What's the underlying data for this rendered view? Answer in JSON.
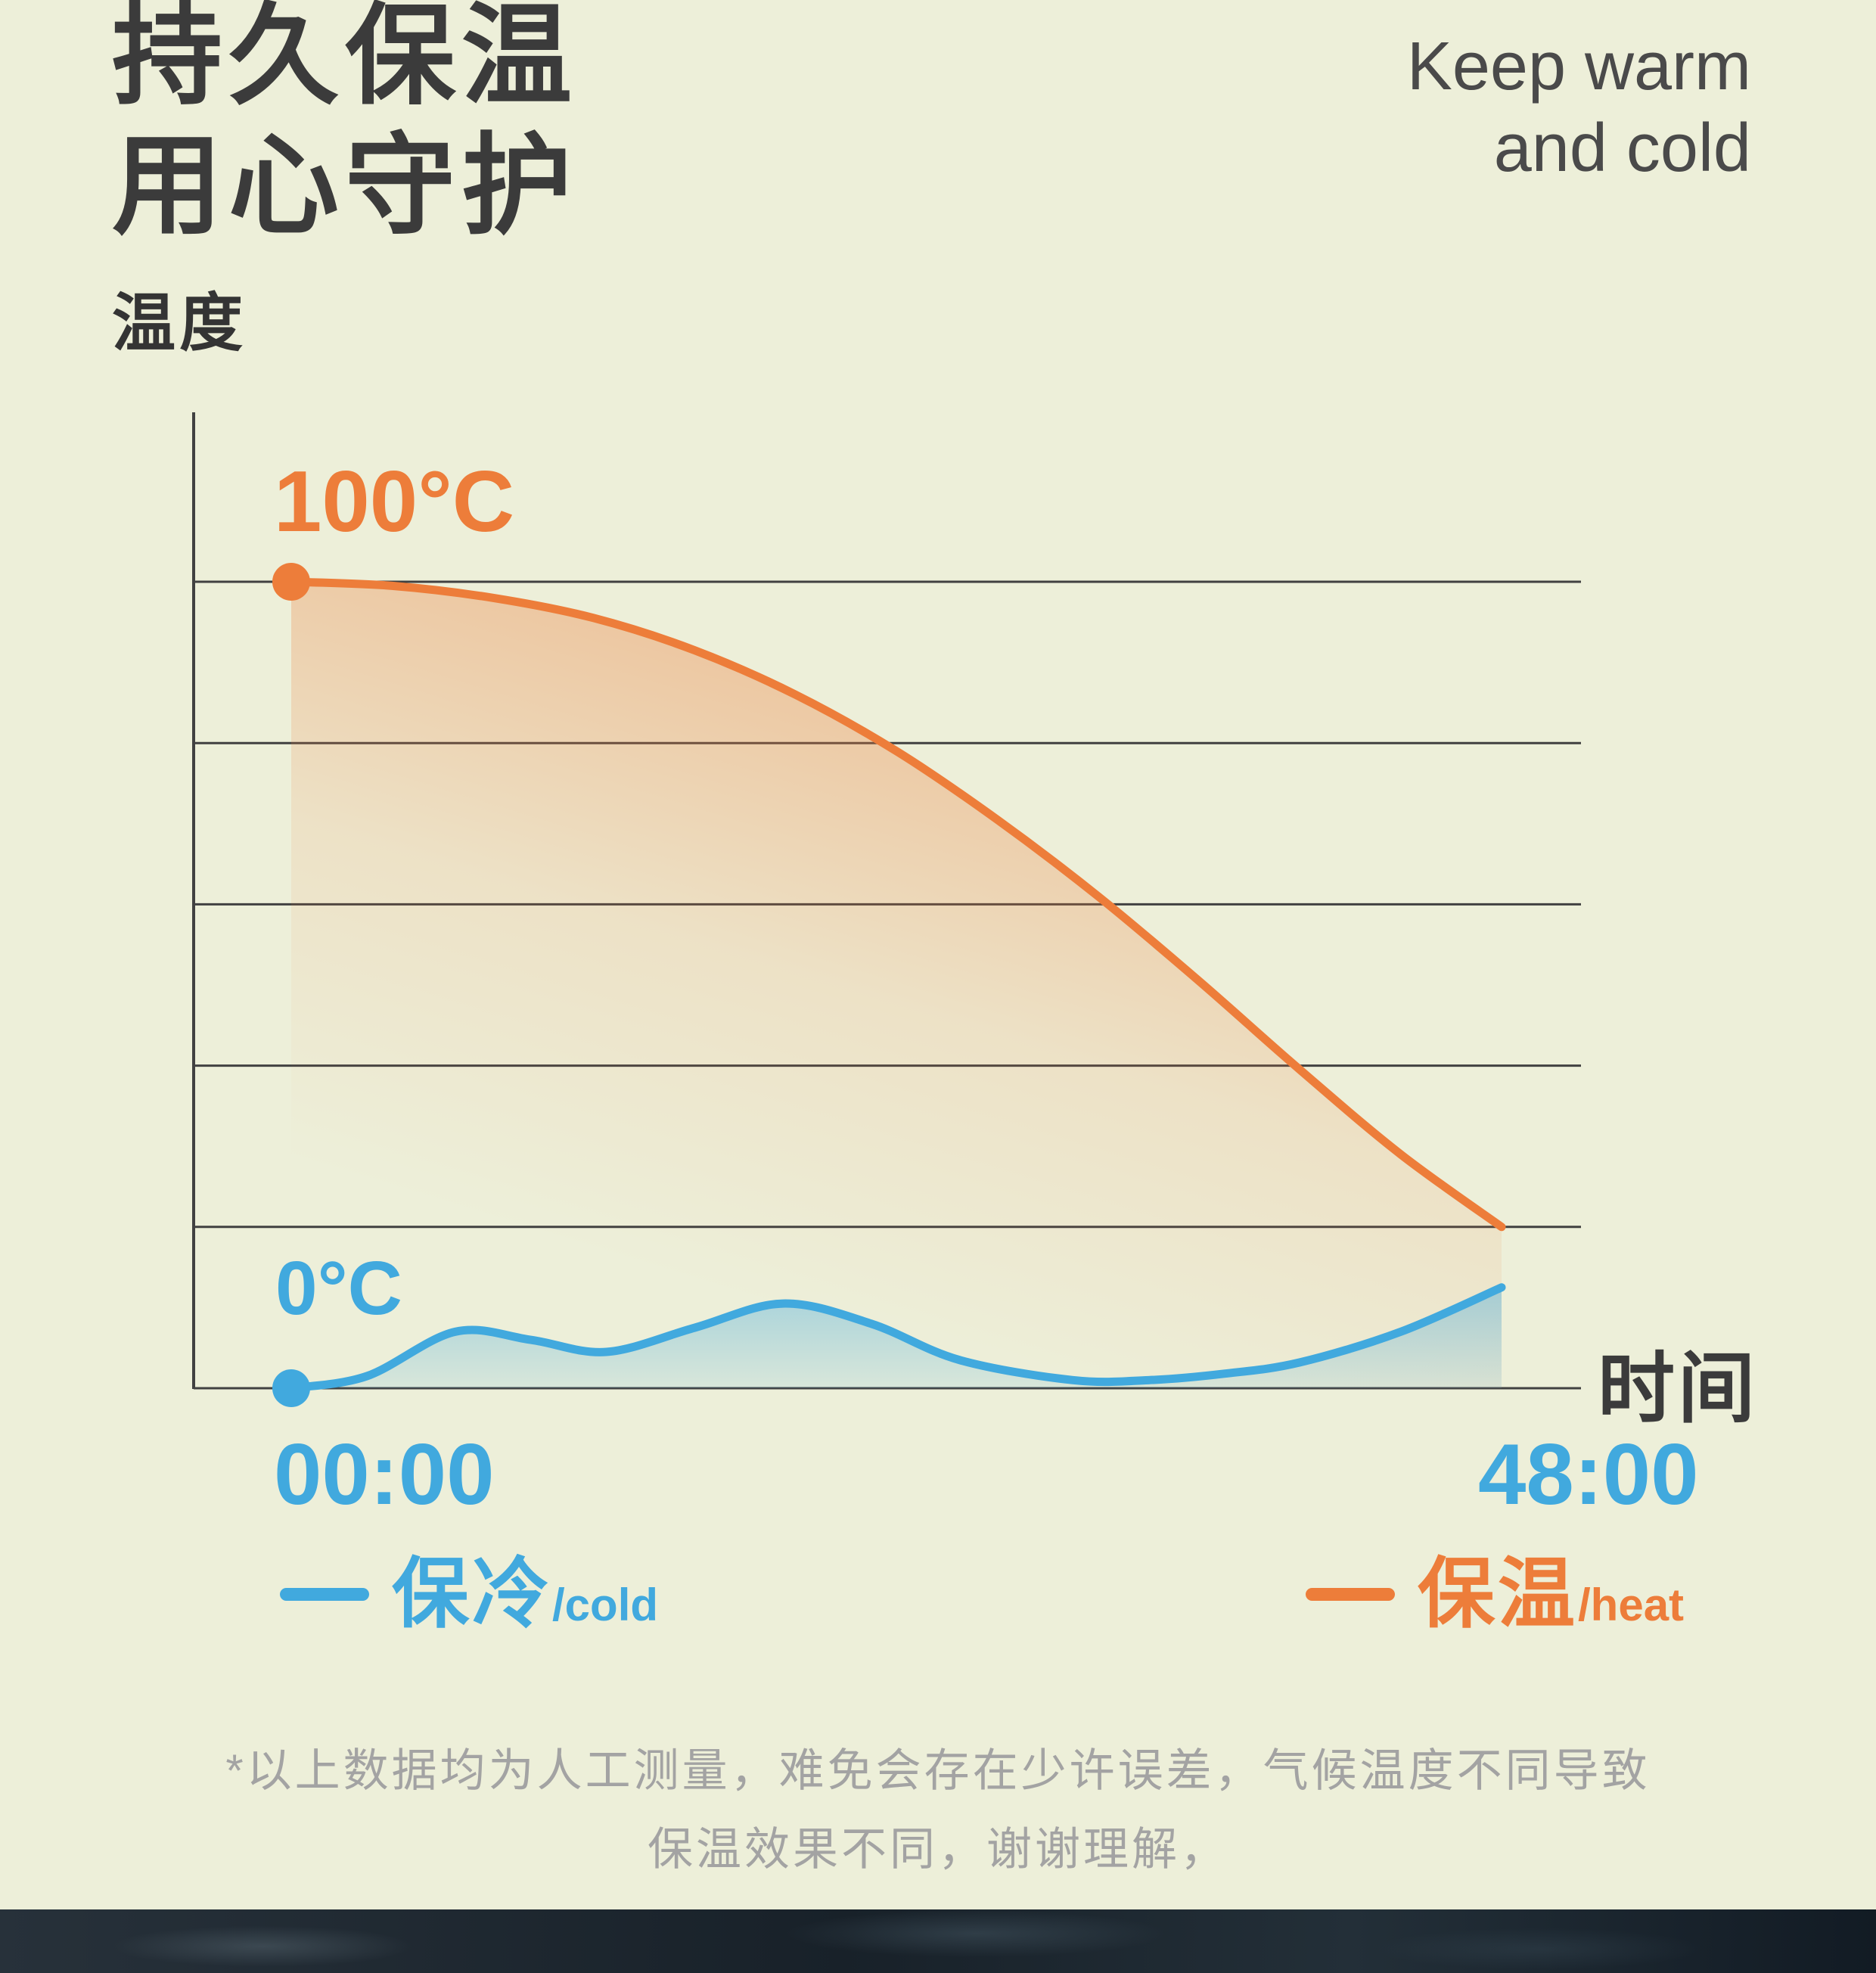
{
  "header": {
    "title_cn_line1": "持久保温",
    "title_cn_line2": "用心守护",
    "title_en_line1": "Keep warm",
    "title_en_line2": "and cold"
  },
  "axis": {
    "y_label": "温度",
    "x_label": "时间",
    "heat_start_label": "100°C",
    "cold_start_label": "0°C",
    "time_start": "00:00",
    "time_end": "48:00"
  },
  "legend": {
    "cold_label": "保冷",
    "cold_sub": "/cold",
    "heat_label": "保温",
    "heat_sub": "/heat"
  },
  "footnote": {
    "line1": "*以上数据均为人工测量，难免会存在少许误差，气候温度不同导致",
    "line2": "保温效果不同，谢谢理解，"
  },
  "colors": {
    "heat": "#ED7D3A",
    "cold": "#41A9DE",
    "background": "#EDEFD9",
    "grid": "#414141",
    "title": "#3B3B3B",
    "footnote": "#A3A3A3"
  },
  "chart_data": {
    "type": "line",
    "xlabel": "时间",
    "ylabel": "温度",
    "x_unit": "hours",
    "xlim": [
      0,
      48
    ],
    "ylim": [
      0,
      100
    ],
    "x_tick_labels": [
      "00:00",
      "48:00"
    ],
    "gridlines_y": [
      100,
      80,
      60,
      40,
      20,
      0
    ],
    "grid": true,
    "legend_position": "bottom",
    "series": [
      {
        "name": "保温/heat",
        "color": "#ED7D3A",
        "start_label": "100°C",
        "x": [
          0,
          4,
          8,
          12,
          16,
          20,
          24,
          28,
          32,
          36,
          40,
          44,
          48
        ],
        "values": [
          100,
          99.5,
          98,
          95.5,
          91.5,
          86,
          79,
          70.5,
          61,
          50.5,
          39.5,
          29,
          20
        ]
      },
      {
        "name": "保冷/cold",
        "color": "#41A9DE",
        "start_label": "0°C",
        "x": [
          0,
          3,
          6.5,
          9.5,
          12.5,
          16,
          19.5,
          23,
          26.5,
          31,
          34,
          37,
          40,
          44,
          48
        ],
        "values": [
          0,
          1.5,
          7,
          6,
          4.5,
          7.5,
          10.5,
          8,
          3.5,
          1,
          1,
          1.8,
          3.2,
          7,
          12.5
        ]
      }
    ]
  }
}
